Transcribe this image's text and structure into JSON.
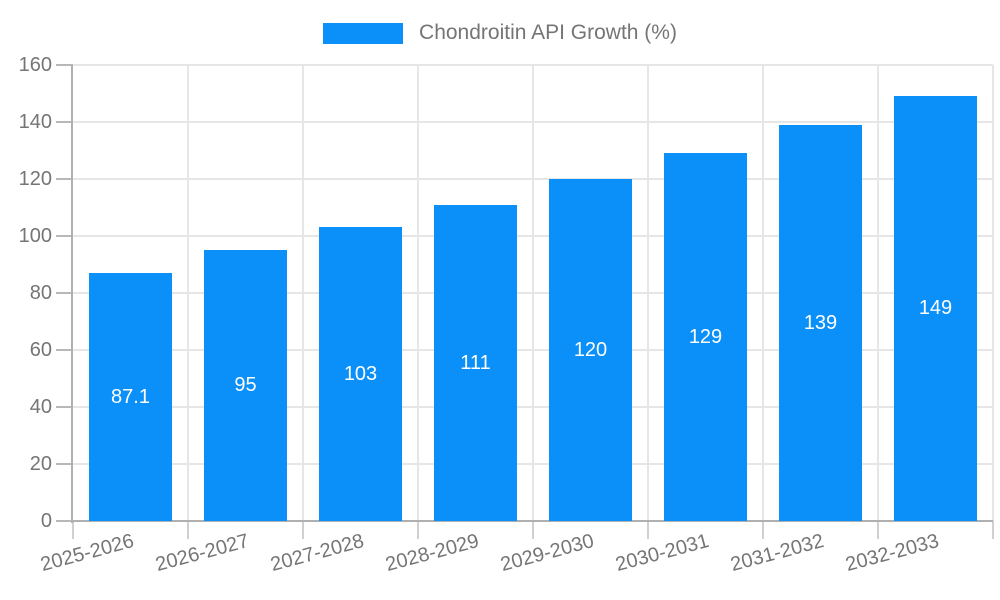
{
  "colors": {
    "bar": "#0a90f8",
    "grid": "#e6e6e6",
    "axis": "#b0b0b0",
    "label_gray": "#757575",
    "value_label": "#ffffff",
    "background": "#ffffff"
  },
  "chart_data": {
    "type": "bar",
    "title": "Chondroitin API Growth (%)",
    "series_name": "Chondroitin API Growth (%)",
    "categories": [
      "2025-2026",
      "2026-2027",
      "2027-2028",
      "2028-2029",
      "2029-2030",
      "2030-2031",
      "2031-2032",
      "2032-2033"
    ],
    "values": [
      87.1,
      95,
      103,
      111,
      120,
      129,
      139,
      149
    ],
    "value_labels": [
      "87.1",
      "95",
      "103",
      "111",
      "120",
      "129",
      "139",
      "149"
    ],
    "xlabel": "",
    "ylabel": "",
    "ylim": [
      0,
      160
    ],
    "yticks": [
      0,
      20,
      40,
      60,
      80,
      100,
      120,
      140,
      160
    ],
    "grid": "on",
    "legend_position": "top-center",
    "value_label_position": "center-of-bar",
    "xtick_rotation_deg": -15
  }
}
